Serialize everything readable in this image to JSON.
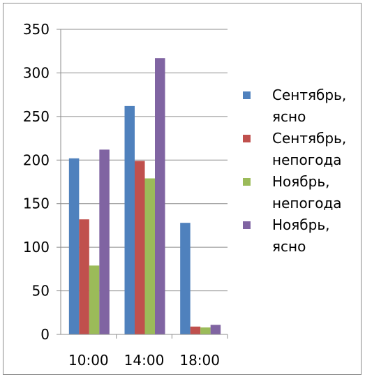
{
  "chart_data": {
    "type": "bar",
    "categories": [
      "10:00",
      "14:00",
      "18:00"
    ],
    "series": [
      {
        "name": "Сентябрь, ясно",
        "legend_lines": [
          "Сентябрь,",
          "ясно"
        ],
        "color": "#4f81bd",
        "values": [
          202,
          262,
          128
        ]
      },
      {
        "name": "Сентябрь, непогода",
        "legend_lines": [
          "Сентябрь,",
          "непогода"
        ],
        "color": "#c0504d",
        "values": [
          132,
          199,
          9
        ]
      },
      {
        "name": "Ноябрь, непогода",
        "legend_lines": [
          "Ноябрь,",
          "непогода"
        ],
        "color": "#9bbb59",
        "values": [
          79,
          179,
          8
        ]
      },
      {
        "name": "Ноябрь, ясно",
        "legend_lines": [
          "Ноябрь,",
          "ясно"
        ],
        "color": "#8064a2",
        "values": [
          212,
          317,
          11
        ]
      }
    ],
    "yticks": [
      "0",
      "50",
      "100",
      "150",
      "200",
      "250",
      "300",
      "350"
    ],
    "ylim": [
      0,
      350
    ],
    "title": "",
    "xlabel": "",
    "ylabel": "",
    "grid": true,
    "legend_position": "right"
  }
}
